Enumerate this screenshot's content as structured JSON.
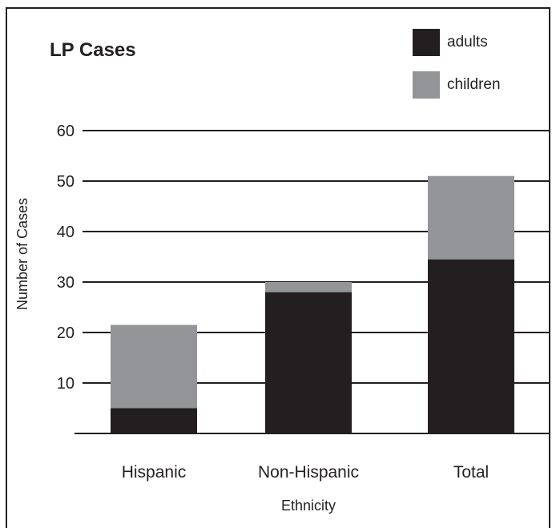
{
  "chart_data": {
    "type": "bar",
    "stacked": true,
    "title": "LP Cases",
    "xlabel": "Ethnicity",
    "ylabel": "Number of Cases",
    "categories": [
      "Hispanic",
      "Non-Hispanic",
      "Total"
    ],
    "series": [
      {
        "name": "adults",
        "values": [
          5,
          28,
          34.5
        ],
        "color": "#231f20"
      },
      {
        "name": "children",
        "values": [
          16.5,
          2,
          16.5
        ],
        "color": "#939598"
      }
    ],
    "ylim": [
      0,
      60
    ],
    "yticks": [
      10,
      20,
      30,
      40,
      50,
      60
    ],
    "grid": true,
    "legend": "top-right"
  }
}
